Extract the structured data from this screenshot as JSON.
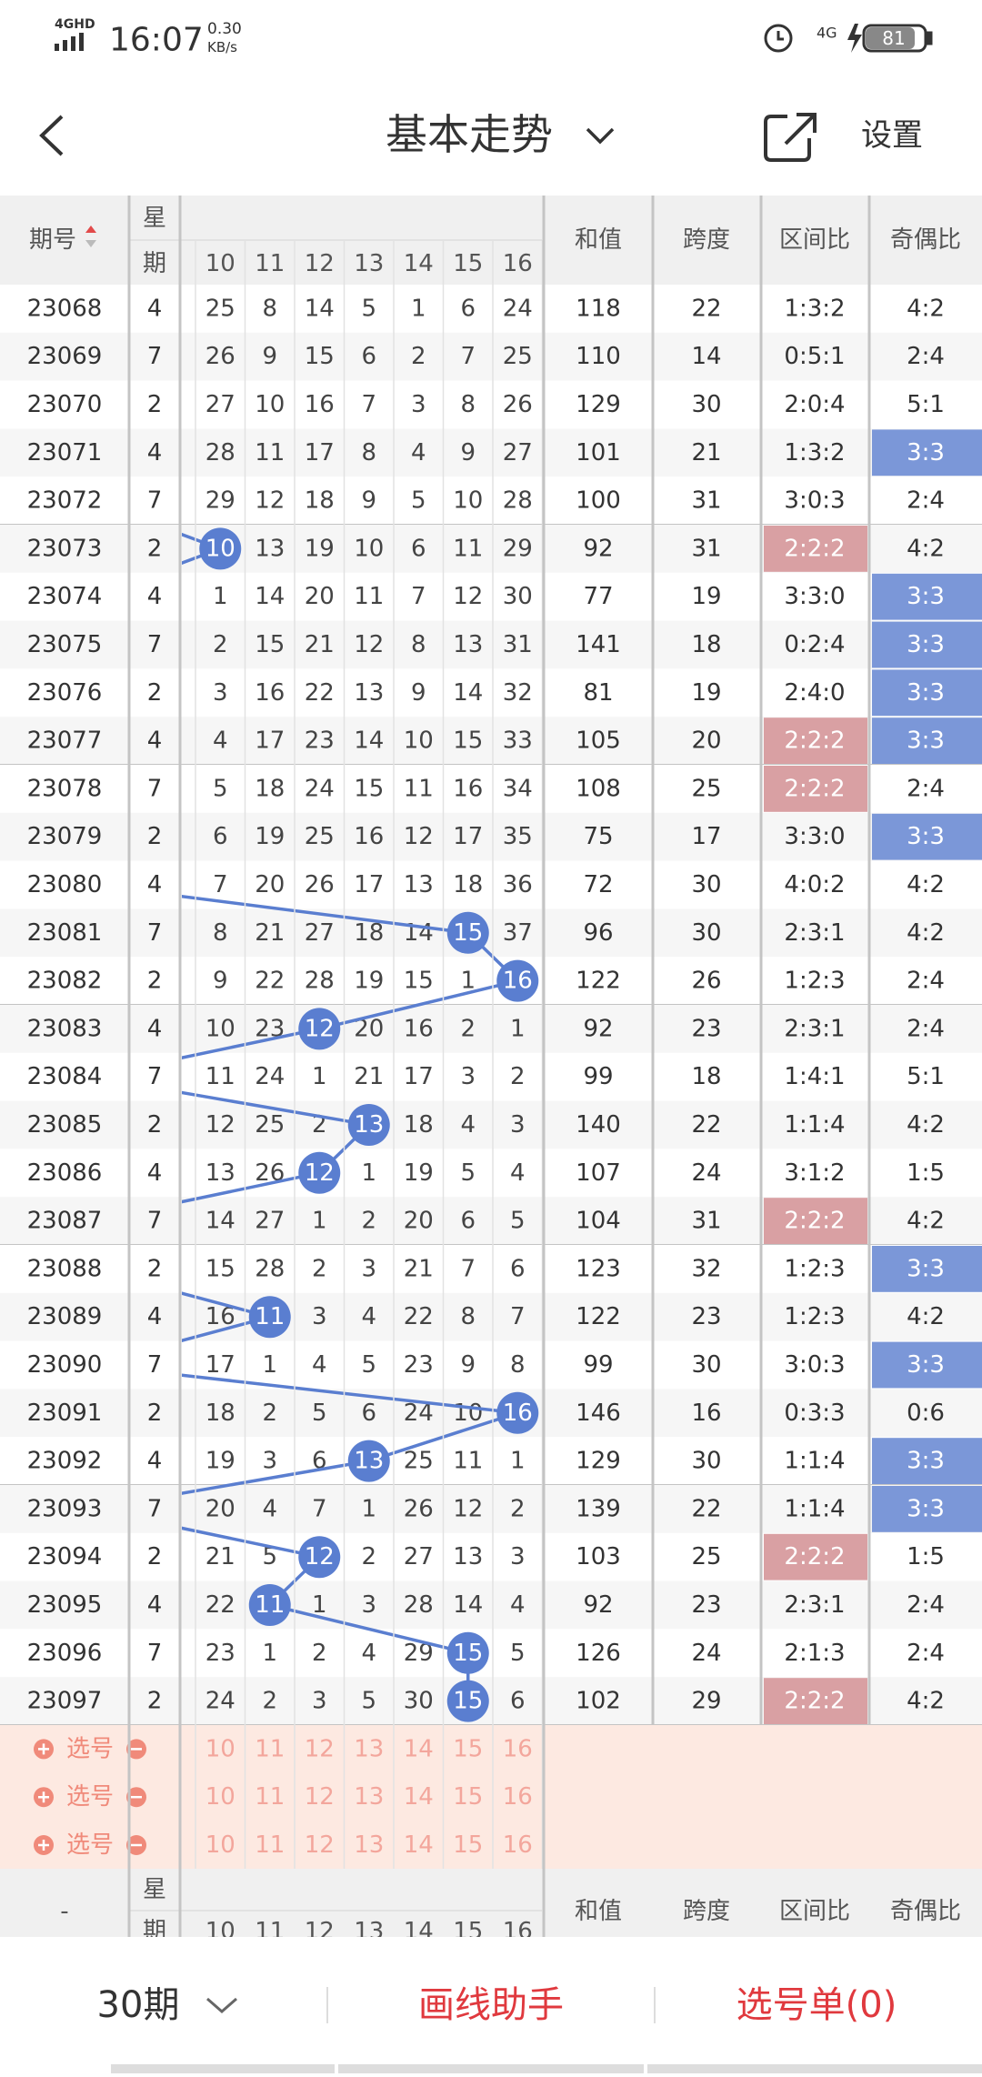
{
  "status_bar": {
    "network": "4GHD",
    "time": "16:07",
    "speed": "0.30",
    "speed_unit": "KB/s",
    "battery": "81"
  },
  "header": {
    "title": "基本走势",
    "settings": "设置"
  },
  "table": {
    "columns": {
      "period": "期号",
      "weekday_top": "星",
      "weekday_bottom": "期",
      "numbers": [
        10,
        11,
        12,
        13,
        14,
        15,
        16
      ],
      "sum": "和值",
      "span": "跨度",
      "zone": "区间比",
      "odd_even": "奇偶比"
    },
    "rows": [
      {
        "period": "23068",
        "weekday": "4",
        "numbers": [
          25,
          8,
          14,
          5,
          1,
          6,
          24
        ],
        "hit": null,
        "sum": 118,
        "span": 22,
        "zone": "1:3:2",
        "zone_hl": false,
        "odd_even": "4:2",
        "odd_even_hl": false
      },
      {
        "period": "23069",
        "weekday": "7",
        "numbers": [
          26,
          9,
          15,
          6,
          2,
          7,
          25
        ],
        "hit": null,
        "sum": 110,
        "span": 14,
        "zone": "0:5:1",
        "zone_hl": false,
        "odd_even": "2:4",
        "odd_even_hl": false
      },
      {
        "period": "23070",
        "weekday": "2",
        "numbers": [
          27,
          10,
          16,
          7,
          3,
          8,
          26
        ],
        "hit": null,
        "sum": 129,
        "span": 30,
        "zone": "2:0:4",
        "zone_hl": false,
        "odd_even": "5:1",
        "odd_even_hl": false
      },
      {
        "period": "23071",
        "weekday": "4",
        "numbers": [
          28,
          11,
          17,
          8,
          4,
          9,
          27
        ],
        "hit": null,
        "sum": 101,
        "span": 21,
        "zone": "1:3:2",
        "zone_hl": false,
        "odd_even": "3:3",
        "odd_even_hl": true
      },
      {
        "period": "23072",
        "weekday": "7",
        "numbers": [
          29,
          12,
          18,
          9,
          5,
          10,
          28
        ],
        "hit": null,
        "sum": 100,
        "span": 31,
        "zone": "3:0:3",
        "zone_hl": false,
        "odd_even": "2:4",
        "odd_even_hl": false
      },
      {
        "period": "23073",
        "weekday": "2",
        "numbers": [
          10,
          13,
          19,
          10,
          6,
          11,
          29
        ],
        "hit": 0,
        "sum": 92,
        "span": 31,
        "zone": "2:2:2",
        "zone_hl": true,
        "odd_even": "4:2",
        "odd_even_hl": false
      },
      {
        "period": "23074",
        "weekday": "4",
        "numbers": [
          1,
          14,
          20,
          11,
          7,
          12,
          30
        ],
        "hit": null,
        "sum": 77,
        "span": 19,
        "zone": "3:3:0",
        "zone_hl": false,
        "odd_even": "3:3",
        "odd_even_hl": true
      },
      {
        "period": "23075",
        "weekday": "7",
        "numbers": [
          2,
          15,
          21,
          12,
          8,
          13,
          31
        ],
        "hit": null,
        "sum": 141,
        "span": 18,
        "zone": "0:2:4",
        "zone_hl": false,
        "odd_even": "3:3",
        "odd_even_hl": true
      },
      {
        "period": "23076",
        "weekday": "2",
        "numbers": [
          3,
          16,
          22,
          13,
          9,
          14,
          32
        ],
        "hit": null,
        "sum": 81,
        "span": 19,
        "zone": "2:4:0",
        "zone_hl": false,
        "odd_even": "3:3",
        "odd_even_hl": true
      },
      {
        "period": "23077",
        "weekday": "4",
        "numbers": [
          4,
          17,
          23,
          14,
          10,
          15,
          33
        ],
        "hit": null,
        "sum": 105,
        "span": 20,
        "zone": "2:2:2",
        "zone_hl": true,
        "odd_even": "3:3",
        "odd_even_hl": true
      },
      {
        "period": "23078",
        "weekday": "7",
        "numbers": [
          5,
          18,
          24,
          15,
          11,
          16,
          34
        ],
        "hit": null,
        "sum": 108,
        "span": 25,
        "zone": "2:2:2",
        "zone_hl": true,
        "odd_even": "2:4",
        "odd_even_hl": false
      },
      {
        "period": "23079",
        "weekday": "2",
        "numbers": [
          6,
          19,
          25,
          16,
          12,
          17,
          35
        ],
        "hit": null,
        "sum": 75,
        "span": 17,
        "zone": "3:3:0",
        "zone_hl": false,
        "odd_even": "3:3",
        "odd_even_hl": true
      },
      {
        "period": "23080",
        "weekday": "4",
        "numbers": [
          7,
          20,
          26,
          17,
          13,
          18,
          36
        ],
        "hit": null,
        "sum": 72,
        "span": 30,
        "zone": "4:0:2",
        "zone_hl": false,
        "odd_even": "4:2",
        "odd_even_hl": false
      },
      {
        "period": "23081",
        "weekday": "7",
        "numbers": [
          8,
          21,
          27,
          18,
          14,
          15,
          37
        ],
        "hit": 5,
        "sum": 96,
        "span": 30,
        "zone": "2:3:1",
        "zone_hl": false,
        "odd_even": "4:2",
        "odd_even_hl": false
      },
      {
        "period": "23082",
        "weekday": "2",
        "numbers": [
          9,
          22,
          28,
          19,
          15,
          1,
          16
        ],
        "hit": 6,
        "sum": 122,
        "span": 26,
        "zone": "1:2:3",
        "zone_hl": false,
        "odd_even": "2:4",
        "odd_even_hl": false
      },
      {
        "period": "23083",
        "weekday": "4",
        "numbers": [
          10,
          23,
          12,
          20,
          16,
          2,
          1
        ],
        "hit": 2,
        "sum": 92,
        "span": 23,
        "zone": "2:3:1",
        "zone_hl": false,
        "odd_even": "2:4",
        "odd_even_hl": false
      },
      {
        "period": "23084",
        "weekday": "7",
        "numbers": [
          11,
          24,
          1,
          21,
          17,
          3,
          2
        ],
        "hit": null,
        "sum": 99,
        "span": 18,
        "zone": "1:4:1",
        "zone_hl": false,
        "odd_even": "5:1",
        "odd_even_hl": false
      },
      {
        "period": "23085",
        "weekday": "2",
        "numbers": [
          12,
          25,
          2,
          13,
          18,
          4,
          3
        ],
        "hit": 3,
        "sum": 140,
        "span": 22,
        "zone": "1:1:4",
        "zone_hl": false,
        "odd_even": "4:2",
        "odd_even_hl": false
      },
      {
        "period": "23086",
        "weekday": "4",
        "numbers": [
          13,
          26,
          12,
          1,
          19,
          5,
          4
        ],
        "hit": 2,
        "sum": 107,
        "span": 24,
        "zone": "3:1:2",
        "zone_hl": false,
        "odd_even": "1:5",
        "odd_even_hl": false
      },
      {
        "period": "23087",
        "weekday": "7",
        "numbers": [
          14,
          27,
          1,
          2,
          20,
          6,
          5
        ],
        "hit": null,
        "sum": 104,
        "span": 31,
        "zone": "2:2:2",
        "zone_hl": true,
        "odd_even": "4:2",
        "odd_even_hl": false
      },
      {
        "period": "23088",
        "weekday": "2",
        "numbers": [
          15,
          28,
          2,
          3,
          21,
          7,
          6
        ],
        "hit": null,
        "sum": 123,
        "span": 32,
        "zone": "1:2:3",
        "zone_hl": false,
        "odd_even": "3:3",
        "odd_even_hl": true
      },
      {
        "period": "23089",
        "weekday": "4",
        "numbers": [
          16,
          11,
          3,
          4,
          22,
          8,
          7
        ],
        "hit": 1,
        "sum": 122,
        "span": 23,
        "zone": "1:2:3",
        "zone_hl": false,
        "odd_even": "4:2",
        "odd_even_hl": false
      },
      {
        "period": "23090",
        "weekday": "7",
        "numbers": [
          17,
          1,
          4,
          5,
          23,
          9,
          8
        ],
        "hit": null,
        "sum": 99,
        "span": 30,
        "zone": "3:0:3",
        "zone_hl": false,
        "odd_even": "3:3",
        "odd_even_hl": true
      },
      {
        "period": "23091",
        "weekday": "2",
        "numbers": [
          18,
          2,
          5,
          6,
          24,
          10,
          16
        ],
        "hit": 6,
        "sum": 146,
        "span": 16,
        "zone": "0:3:3",
        "zone_hl": false,
        "odd_even": "0:6",
        "odd_even_hl": false
      },
      {
        "period": "23092",
        "weekday": "4",
        "numbers": [
          19,
          3,
          6,
          13,
          25,
          11,
          1
        ],
        "hit": 3,
        "sum": 129,
        "span": 30,
        "zone": "1:1:4",
        "zone_hl": false,
        "odd_even": "3:3",
        "odd_even_hl": true
      },
      {
        "period": "23093",
        "weekday": "7",
        "numbers": [
          20,
          4,
          7,
          1,
          26,
          12,
          2
        ],
        "hit": null,
        "sum": 139,
        "span": 22,
        "zone": "1:1:4",
        "zone_hl": false,
        "odd_even": "3:3",
        "odd_even_hl": true
      },
      {
        "period": "23094",
        "weekday": "2",
        "numbers": [
          21,
          5,
          12,
          2,
          27,
          13,
          3
        ],
        "hit": 2,
        "sum": 103,
        "span": 25,
        "zone": "2:2:2",
        "zone_hl": true,
        "odd_even": "1:5",
        "odd_even_hl": false
      },
      {
        "period": "23095",
        "weekday": "4",
        "numbers": [
          22,
          11,
          1,
          3,
          28,
          14,
          4
        ],
        "hit": 1,
        "sum": 92,
        "span": 23,
        "zone": "2:3:1",
        "zone_hl": false,
        "odd_even": "2:4",
        "odd_even_hl": false
      },
      {
        "period": "23096",
        "weekday": "7",
        "numbers": [
          23,
          1,
          2,
          4,
          29,
          15,
          5
        ],
        "hit": 5,
        "sum": 126,
        "span": 24,
        "zone": "2:1:3",
        "zone_hl": false,
        "odd_even": "2:4",
        "odd_even_hl": false
      },
      {
        "period": "23097",
        "weekday": "2",
        "numbers": [
          24,
          2,
          3,
          5,
          30,
          15,
          6
        ],
        "hit": 5,
        "sum": 102,
        "span": 29,
        "zone": "2:2:2",
        "zone_hl": true,
        "odd_even": "4:2",
        "odd_even_hl": false
      }
    ]
  },
  "pick_rows": [
    "选号",
    "选号",
    "选号"
  ],
  "bottom_header": {
    "period": "-"
  },
  "footer": {
    "periods": "30期",
    "draw_helper": "画线助手",
    "pick_list": "选号单(0)"
  }
}
